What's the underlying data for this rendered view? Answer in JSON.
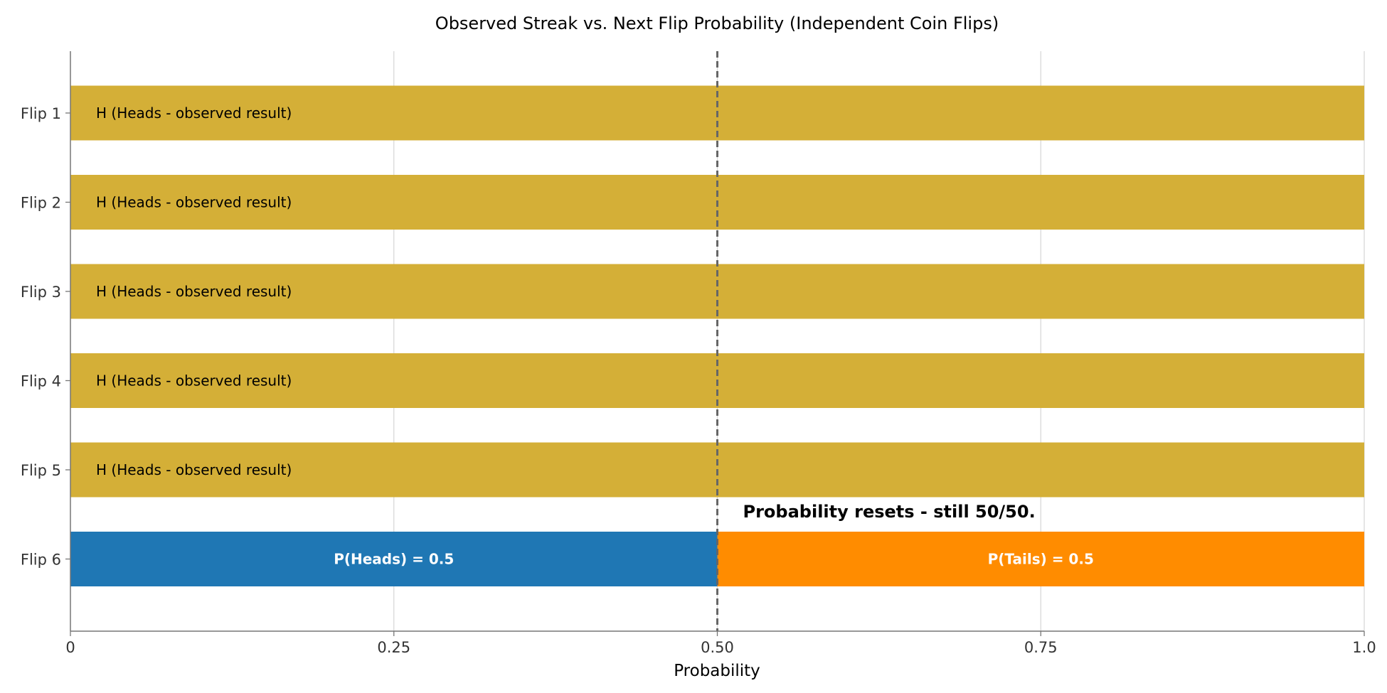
{
  "chart_data": {
    "type": "bar",
    "orientation": "horizontal",
    "stacked": true,
    "title": "Observed Streak vs. Next Flip Probability (Independent Coin Flips)",
    "xlabel": "Probability",
    "ylabel": "",
    "xlim": [
      0,
      1
    ],
    "x_ticks": [
      0,
      0.25,
      0.5,
      0.75,
      1.0
    ],
    "x_tick_labels": [
      "0",
      "0.25",
      "0.50",
      "0.75",
      "1.0"
    ],
    "categories": [
      "Flip 1",
      "Flip 2",
      "Flip 3",
      "Flip 4",
      "Flip 5",
      "Flip 6"
    ],
    "grid": "vertical",
    "reference_line": {
      "x": 0.5,
      "style": "dashed"
    },
    "bars": [
      {
        "category": "Flip 1",
        "segments": [
          {
            "start": 0,
            "value": 1.0,
            "label": "H (Heads - observed result)",
            "color": "#D4AF37",
            "label_align": "left"
          }
        ]
      },
      {
        "category": "Flip 2",
        "segments": [
          {
            "start": 0,
            "value": 1.0,
            "label": "H (Heads - observed result)",
            "color": "#D4AF37",
            "label_align": "left"
          }
        ]
      },
      {
        "category": "Flip 3",
        "segments": [
          {
            "start": 0,
            "value": 1.0,
            "label": "H (Heads - observed result)",
            "color": "#D4AF37",
            "label_align": "left"
          }
        ]
      },
      {
        "category": "Flip 4",
        "segments": [
          {
            "start": 0,
            "value": 1.0,
            "label": "H (Heads - observed result)",
            "color": "#D4AF37",
            "label_align": "left"
          }
        ]
      },
      {
        "category": "Flip 5",
        "segments": [
          {
            "start": 0,
            "value": 1.0,
            "label": "H (Heads - observed result)",
            "color": "#D4AF37",
            "label_align": "left"
          }
        ]
      },
      {
        "category": "Flip 6",
        "segments": [
          {
            "start": 0,
            "value": 0.5,
            "label": "P(Heads) = 0.5",
            "color": "#1F77B4",
            "label_align": "center"
          },
          {
            "start": 0.5,
            "value": 0.5,
            "label": "P(Tails) = 0.5",
            "color": "#FF8C00",
            "label_align": "center"
          }
        ]
      }
    ],
    "annotations": [
      {
        "text": "Probability resets - still 50/50.",
        "x": 0.5,
        "category": "Flip 6"
      }
    ]
  }
}
